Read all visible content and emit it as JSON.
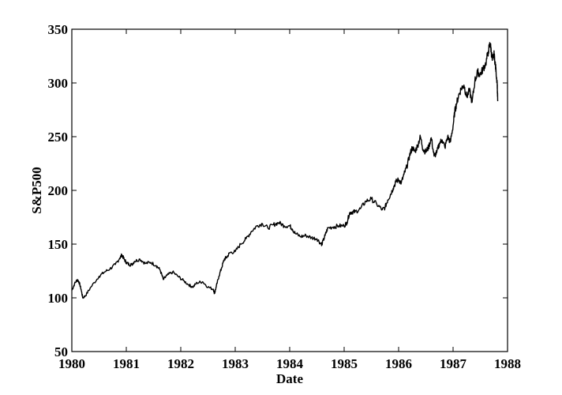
{
  "chart_data": {
    "type": "line",
    "title": "",
    "xlabel": "Date",
    "ylabel": "S&P500",
    "xlim": [
      1980,
      1988
    ],
    "ylim": [
      50,
      350
    ],
    "x_ticks": [
      1980,
      1981,
      1982,
      1983,
      1984,
      1985,
      1986,
      1987,
      1988
    ],
    "y_ticks": [
      50,
      100,
      150,
      200,
      250,
      300,
      350
    ],
    "grid": false,
    "legend": "none",
    "line_color": "#000000",
    "series": [
      {
        "x": [
          1980.0,
          1980.05,
          1980.1,
          1980.13,
          1980.17,
          1980.2,
          1980.25,
          1980.35,
          1980.5,
          1980.6,
          1980.7,
          1980.8,
          1980.88,
          1980.92,
          1980.96,
          1981.0,
          1981.05,
          1981.1,
          1981.15,
          1981.25,
          1981.35,
          1981.45,
          1981.55,
          1981.62,
          1981.68,
          1981.75,
          1981.85,
          1981.95,
          1982.05,
          1982.15,
          1982.22,
          1982.3,
          1982.4,
          1982.5,
          1982.6,
          1982.62,
          1982.65,
          1982.7,
          1982.75,
          1982.8,
          1982.85,
          1982.9,
          1983.0,
          1983.1,
          1983.2,
          1983.3,
          1983.4,
          1983.5,
          1983.6,
          1983.7,
          1983.8,
          1983.9,
          1984.0,
          1984.05,
          1984.1,
          1984.2,
          1984.3,
          1984.4,
          1984.5,
          1984.58,
          1984.6,
          1984.65,
          1984.7,
          1984.8,
          1984.9,
          1985.0,
          1985.05,
          1985.1,
          1985.15,
          1985.2,
          1985.3,
          1985.4,
          1985.5,
          1985.6,
          1985.7,
          1985.75,
          1985.8,
          1985.85,
          1985.9,
          1985.95,
          1986.0,
          1986.05,
          1986.1,
          1986.15,
          1986.2,
          1986.25,
          1986.3,
          1986.35,
          1986.4,
          1986.45,
          1986.5,
          1986.55,
          1986.6,
          1986.65,
          1986.7,
          1986.75,
          1986.8,
          1986.85,
          1986.9,
          1986.95,
          1987.0,
          1987.03,
          1987.06,
          1987.1,
          1987.15,
          1987.2,
          1987.25,
          1987.3,
          1987.35,
          1987.4,
          1987.45,
          1987.5,
          1987.55,
          1987.6,
          1987.65,
          1987.68,
          1987.7,
          1987.72,
          1987.75,
          1987.77,
          1987.79,
          1987.81,
          1987.82
        ],
        "y": [
          107,
          113,
          117,
          115,
          108,
          100,
          102,
          110,
          120,
          124,
          127,
          131,
          137,
          140,
          136,
          133,
          131,
          131,
          134,
          136,
          132,
          133,
          130,
          126,
          117,
          121,
          124,
          120,
          116,
          112,
          110,
          114,
          115,
          110,
          108,
          104,
          110,
          120,
          128,
          136,
          138,
          142,
          143,
          150,
          155,
          162,
          167,
          169,
          165,
          168,
          170,
          167,
          167,
          164,
          160,
          157,
          158,
          156,
          155,
          150,
          151,
          158,
          165,
          166,
          167,
          167,
          170,
          179,
          180,
          180,
          183,
          190,
          192,
          187,
          182,
          184,
          191,
          196,
          202,
          208,
          210,
          207,
          215,
          222,
          232,
          240,
          236,
          242,
          250,
          238,
          236,
          240,
          249,
          232,
          235,
          244,
          247,
          240,
          250,
          245,
          260,
          273,
          280,
          288,
          295,
          298,
          287,
          293,
          282,
          302,
          310,
          308,
          313,
          318,
          330,
          337,
          330,
          321,
          327,
          320,
          310,
          300,
          283
        ]
      }
    ]
  }
}
